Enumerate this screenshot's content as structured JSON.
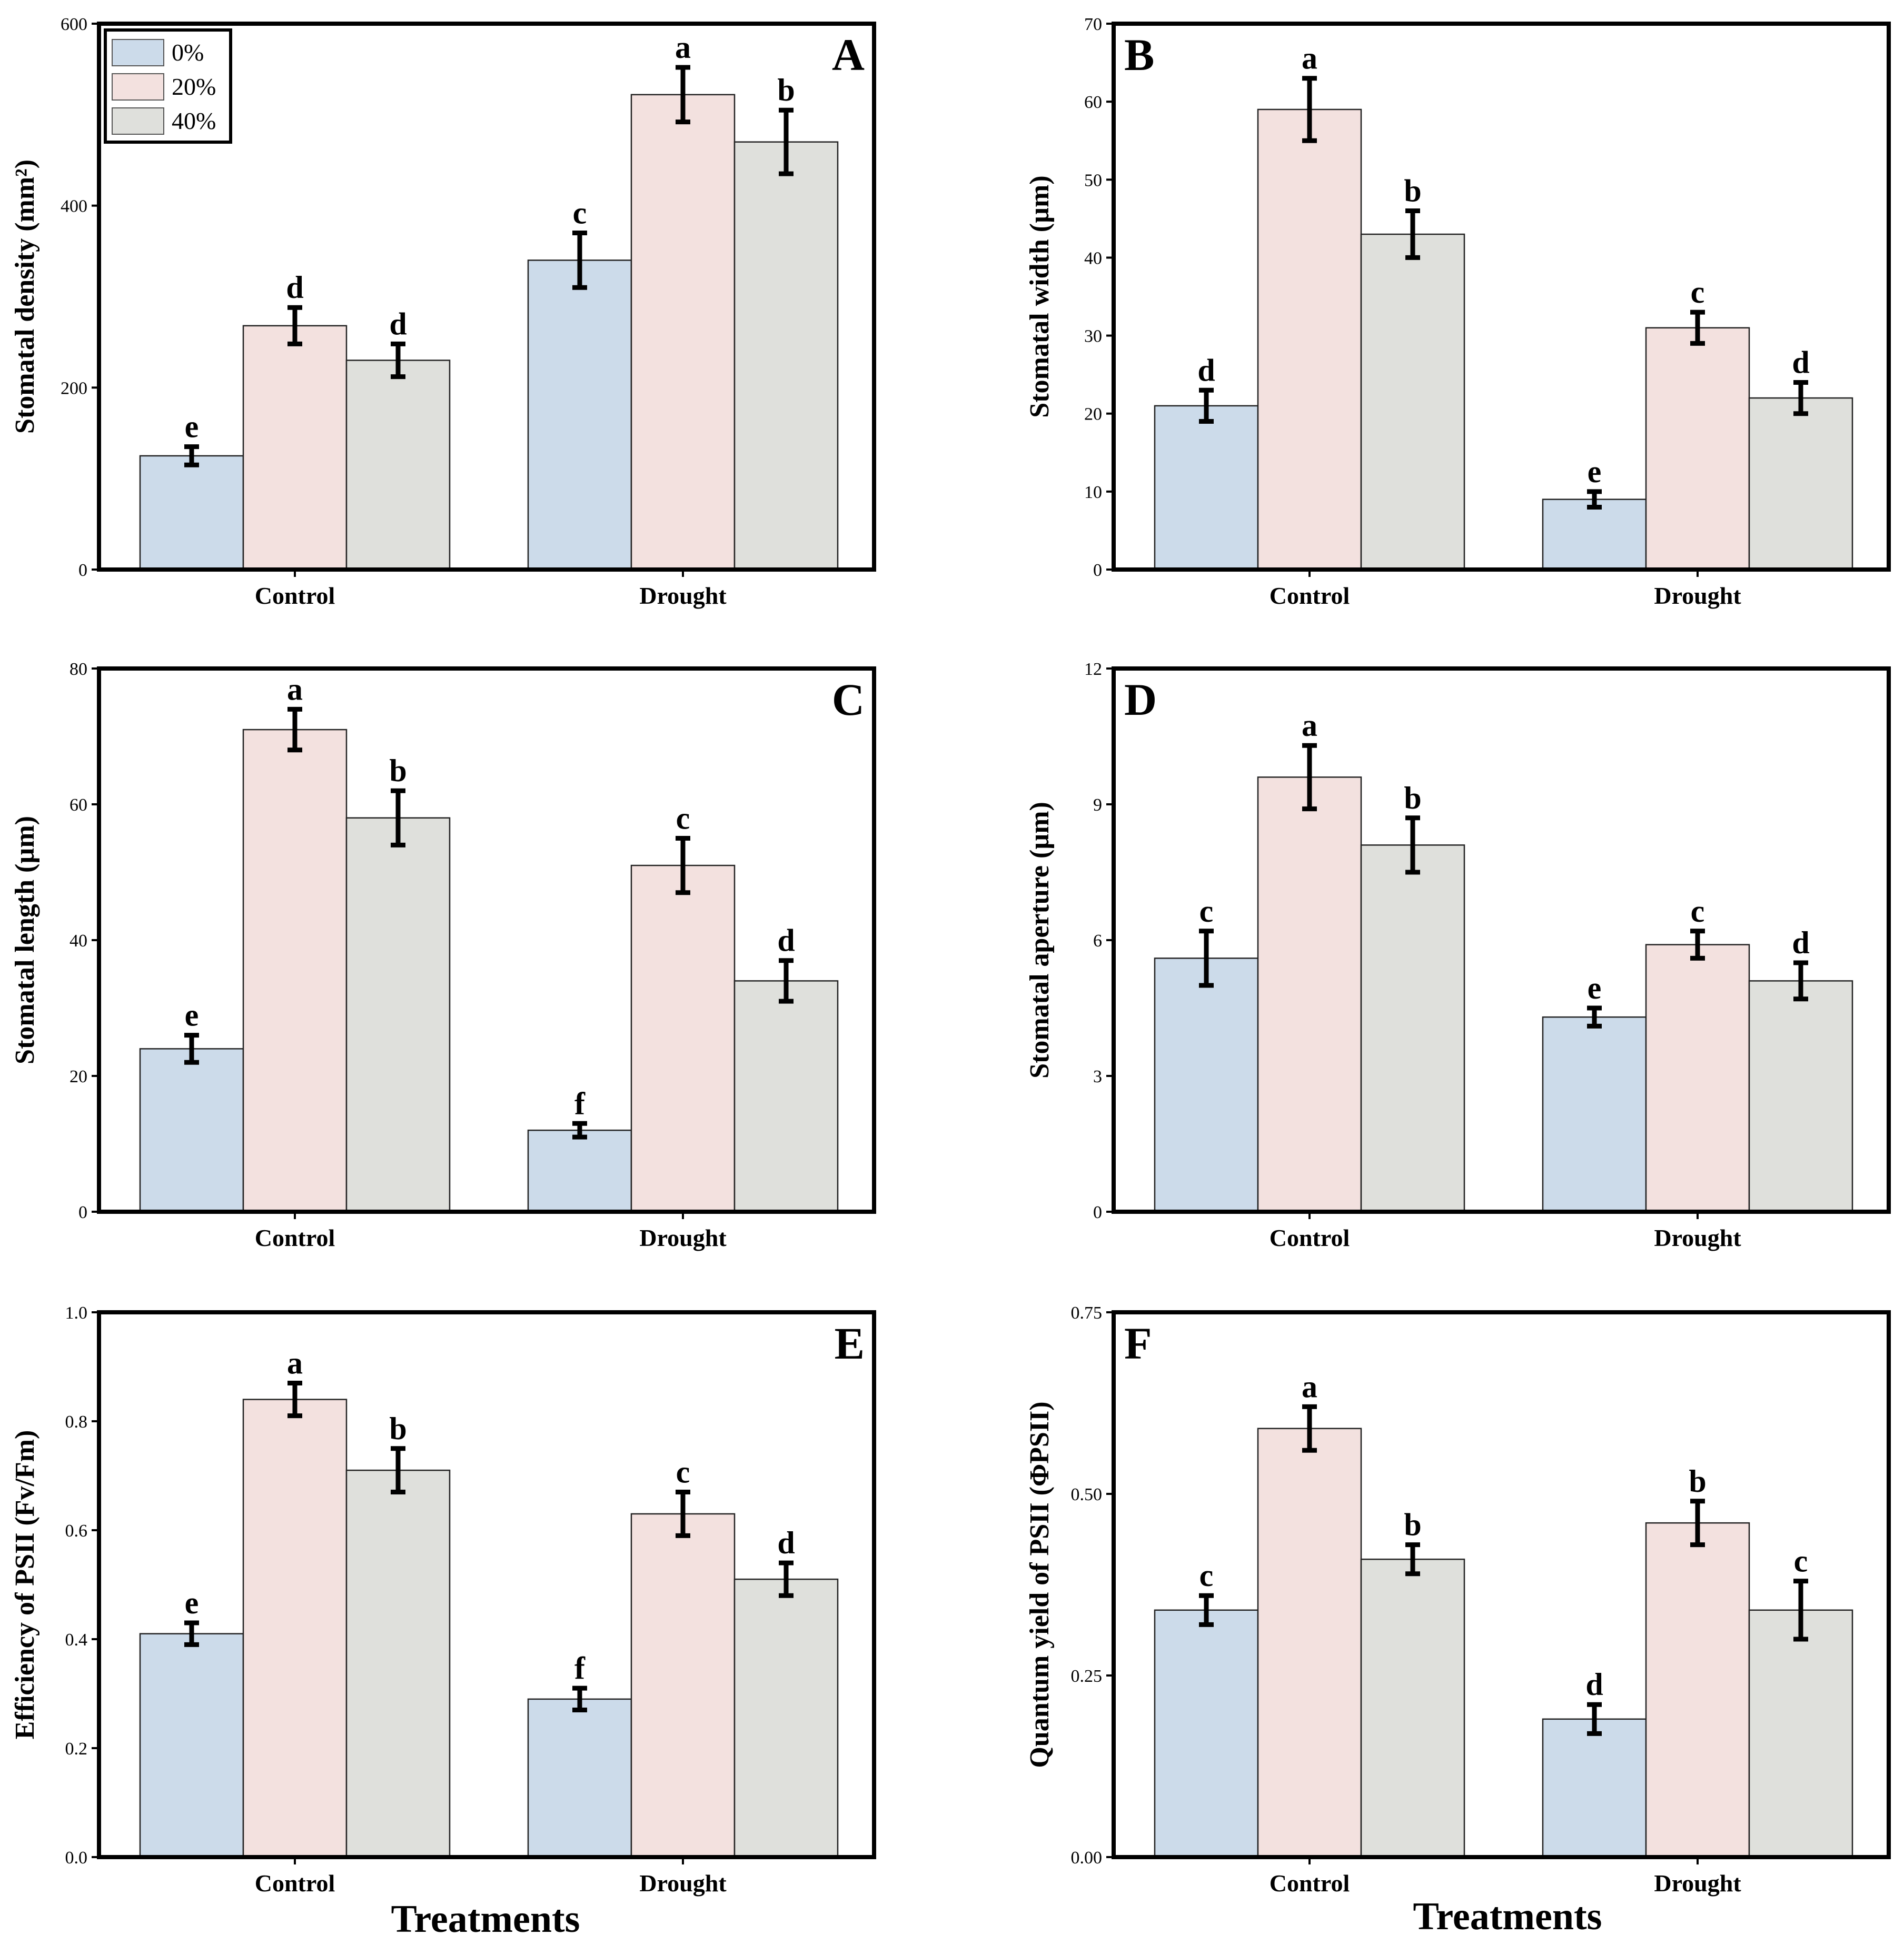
{
  "legend": {
    "entries": [
      "0%",
      "20%",
      "40%"
    ],
    "colors": [
      "#ccdbea",
      "#f3e1df",
      "#dfe0dc"
    ]
  },
  "x_title": "Treatments",
  "chart_data": [
    {
      "type": "bar",
      "panel": "A",
      "legend": true,
      "ylabel": "Stomatal density (mm²)",
      "ylim": [
        0,
        600
      ],
      "yticks": [
        0,
        200,
        400,
        600
      ],
      "ytick_labels": [
        "0",
        "200",
        "400",
        "600"
      ],
      "categories": [
        "Control",
        "Drought"
      ],
      "series": [
        {
          "name": "0%",
          "values": [
            125,
            340
          ],
          "errors": [
            10,
            30
          ],
          "letters": [
            "e",
            "c"
          ]
        },
        {
          "name": "20%",
          "values": [
            268,
            522
          ],
          "errors": [
            20,
            30
          ],
          "letters": [
            "d",
            "a"
          ]
        },
        {
          "name": "40%",
          "values": [
            230,
            470
          ],
          "errors": [
            18,
            35
          ],
          "letters": [
            "d",
            "b"
          ]
        }
      ]
    },
    {
      "type": "bar",
      "panel": "B",
      "legend": false,
      "ylabel": "Stomatal width (µm)",
      "ylim": [
        0,
        70
      ],
      "yticks": [
        0,
        10,
        20,
        30,
        40,
        50,
        60,
        70
      ],
      "ytick_labels": [
        "0",
        "10",
        "20",
        "30",
        "40",
        "50",
        "60",
        "70"
      ],
      "categories": [
        "Control",
        "Drought"
      ],
      "series": [
        {
          "name": "0%",
          "values": [
            21,
            9
          ],
          "errors": [
            2,
            1
          ],
          "letters": [
            "d",
            "e"
          ]
        },
        {
          "name": "20%",
          "values": [
            59,
            31
          ],
          "errors": [
            4,
            2
          ],
          "letters": [
            "a",
            "c"
          ]
        },
        {
          "name": "40%",
          "values": [
            43,
            22
          ],
          "errors": [
            3,
            2
          ],
          "letters": [
            "b",
            "d"
          ]
        }
      ]
    },
    {
      "type": "bar",
      "panel": "C",
      "legend": false,
      "ylabel": "Stomatal length (µm)",
      "ylim": [
        0,
        80
      ],
      "yticks": [
        0,
        20,
        40,
        60,
        80
      ],
      "ytick_labels": [
        "0",
        "20",
        "40",
        "60",
        "80"
      ],
      "categories": [
        "Control",
        "Drought"
      ],
      "series": [
        {
          "name": "0%",
          "values": [
            24,
            12
          ],
          "errors": [
            2,
            1
          ],
          "letters": [
            "e",
            "f"
          ]
        },
        {
          "name": "20%",
          "values": [
            71,
            51
          ],
          "errors": [
            3,
            4
          ],
          "letters": [
            "a",
            "c"
          ]
        },
        {
          "name": "40%",
          "values": [
            58,
            34
          ],
          "errors": [
            4,
            3
          ],
          "letters": [
            "b",
            "d"
          ]
        }
      ]
    },
    {
      "type": "bar",
      "panel": "D",
      "legend": false,
      "ylabel": "Stomatal aperture (µm)",
      "ylim": [
        0,
        12
      ],
      "yticks": [
        0,
        3,
        6,
        9,
        12
      ],
      "ytick_labels": [
        "0",
        "3",
        "6",
        "9",
        "12"
      ],
      "categories": [
        "Control",
        "Drought"
      ],
      "series": [
        {
          "name": "0%",
          "values": [
            5.6,
            4.3
          ],
          "errors": [
            0.6,
            0.2
          ],
          "letters": [
            "c",
            "e"
          ]
        },
        {
          "name": "20%",
          "values": [
            9.6,
            5.9
          ],
          "errors": [
            0.7,
            0.3
          ],
          "letters": [
            "a",
            "c"
          ]
        },
        {
          "name": "40%",
          "values": [
            8.1,
            5.1
          ],
          "errors": [
            0.6,
            0.4
          ],
          "letters": [
            "b",
            "d"
          ]
        }
      ]
    },
    {
      "type": "bar",
      "panel": "E",
      "legend": false,
      "ylabel": "Efficiency of PSII (Fv/Fm)",
      "ylim": [
        0,
        1.0
      ],
      "yticks": [
        0,
        0.2,
        0.4,
        0.6,
        0.8,
        1.0
      ],
      "ytick_labels": [
        "0.0",
        "0.2",
        "0.4",
        "0.6",
        "0.8",
        "1.0"
      ],
      "categories": [
        "Control",
        "Drought"
      ],
      "series": [
        {
          "name": "0%",
          "values": [
            0.41,
            0.29
          ],
          "errors": [
            0.02,
            0.02
          ],
          "letters": [
            "e",
            "f"
          ]
        },
        {
          "name": "20%",
          "values": [
            0.84,
            0.63
          ],
          "errors": [
            0.03,
            0.04
          ],
          "letters": [
            "a",
            "c"
          ]
        },
        {
          "name": "40%",
          "values": [
            0.71,
            0.51
          ],
          "errors": [
            0.04,
            0.03
          ],
          "letters": [
            "b",
            "d"
          ]
        }
      ]
    },
    {
      "type": "bar",
      "panel": "F",
      "legend": false,
      "ylabel": "Quantum yield of PSII (ΦPSII)",
      "ylim": [
        0,
        0.75
      ],
      "yticks": [
        0,
        0.25,
        0.5,
        0.75
      ],
      "ytick_labels": [
        "0.00",
        "0.25",
        "0.50",
        "0.75"
      ],
      "categories": [
        "Control",
        "Drought"
      ],
      "series": [
        {
          "name": "0%",
          "values": [
            0.34,
            0.19
          ],
          "errors": [
            0.02,
            0.02
          ],
          "letters": [
            "c",
            "d"
          ]
        },
        {
          "name": "20%",
          "values": [
            0.59,
            0.46
          ],
          "errors": [
            0.03,
            0.03
          ],
          "letters": [
            "a",
            "b"
          ]
        },
        {
          "name": "40%",
          "values": [
            0.41,
            0.34
          ],
          "errors": [
            0.02,
            0.04
          ],
          "letters": [
            "b",
            "c"
          ]
        }
      ]
    }
  ]
}
